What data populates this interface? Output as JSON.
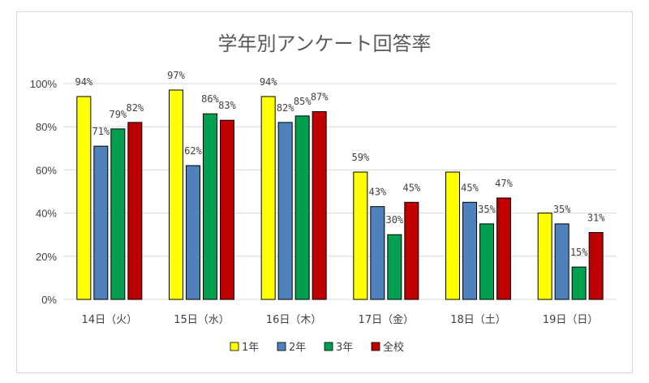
{
  "chart_data": {
    "type": "bar",
    "title": "学年別アンケート回答率",
    "categories": [
      "14日（火）",
      "15日（水）",
      "16日（木）",
      "17日（金）",
      "18日（土）",
      "19日（日）"
    ],
    "series": [
      {
        "name": "1年",
        "color": "#ffff00",
        "values": [
          94,
          97,
          94,
          59,
          59,
          40
        ],
        "labels": [
          "94%",
          "97%",
          "94%",
          "59%",
          "",
          ""
        ]
      },
      {
        "name": "2年",
        "color": "#4f81bd",
        "values": [
          71,
          62,
          82,
          43,
          45,
          35
        ],
        "labels": [
          "71%",
          "62%",
          "82%",
          "43%",
          "45%",
          "35%"
        ]
      },
      {
        "name": "3年",
        "color": "#00a050",
        "values": [
          79,
          86,
          85,
          30,
          35,
          15
        ],
        "labels": [
          "79%",
          "86%",
          "85%",
          "30%",
          "35%",
          "15%"
        ]
      },
      {
        "name": "全校",
        "color": "#c00000",
        "values": [
          82,
          83,
          87,
          45,
          47,
          31
        ],
        "labels": [
          "82%",
          "83%",
          "87%",
          "45%",
          "47%",
          "31%"
        ]
      }
    ],
    "yticks": [
      "0%",
      "20%",
      "40%",
      "60%",
      "80%",
      "100%"
    ],
    "ylim": [
      0,
      100
    ],
    "grid": true,
    "legend": "bottom"
  }
}
